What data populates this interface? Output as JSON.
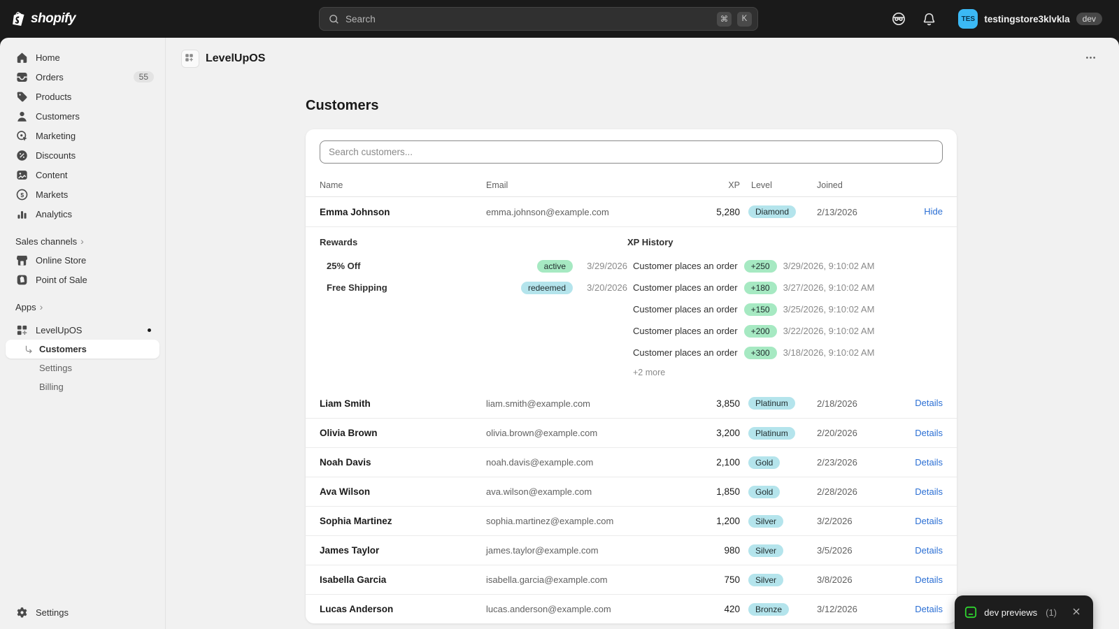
{
  "topbar": {
    "brand": "shopify",
    "search": {
      "placeholder": "Search",
      "shortcut_cmd": "⌘",
      "shortcut_key": "K"
    },
    "account": {
      "initials": "TES",
      "store_name": "testingstore3klvkla",
      "env_badge": "dev"
    }
  },
  "sidebar": {
    "items": [
      {
        "label": "Home",
        "icon": "home-icon"
      },
      {
        "label": "Orders",
        "icon": "orders-icon",
        "badge": "55"
      },
      {
        "label": "Products",
        "icon": "tag-icon"
      },
      {
        "label": "Customers",
        "icon": "people-icon"
      },
      {
        "label": "Marketing",
        "icon": "marketing-icon"
      },
      {
        "label": "Discounts",
        "icon": "discount-icon"
      },
      {
        "label": "Content",
        "icon": "content-icon"
      },
      {
        "label": "Markets",
        "icon": "markets-icon"
      },
      {
        "label": "Analytics",
        "icon": "analytics-icon"
      }
    ],
    "sales_channels": {
      "label": "Sales channels",
      "items": [
        {
          "label": "Online Store",
          "icon": "storefront-icon"
        },
        {
          "label": "Point of Sale",
          "icon": "pos-icon"
        }
      ]
    },
    "apps": {
      "label": "Apps",
      "app": {
        "label": "LevelUpOS",
        "icon": "app-grid-icon"
      },
      "children": [
        {
          "label": "Customers",
          "active": true
        },
        {
          "label": "Settings",
          "active": false
        },
        {
          "label": "Billing",
          "active": false
        }
      ]
    },
    "footer": {
      "label": "Settings",
      "icon": "gear-icon"
    }
  },
  "page_header": {
    "title": "LevelUpOS"
  },
  "content": {
    "title": "Customers",
    "search_placeholder": "Search customers...",
    "table": {
      "columns": [
        "Name",
        "Email",
        "XP",
        "Level",
        "Joined"
      ],
      "rows": [
        {
          "name": "Emma Johnson",
          "email": "emma.johnson@example.com",
          "xp": "5,280",
          "level": "Diamond",
          "joined": "2/13/2026",
          "action": "Hide"
        },
        {
          "name": "Liam Smith",
          "email": "liam.smith@example.com",
          "xp": "3,850",
          "level": "Platinum",
          "joined": "2/18/2026",
          "action": "Details"
        },
        {
          "name": "Olivia Brown",
          "email": "olivia.brown@example.com",
          "xp": "3,200",
          "level": "Platinum",
          "joined": "2/20/2026",
          "action": "Details"
        },
        {
          "name": "Noah Davis",
          "email": "noah.davis@example.com",
          "xp": "2,100",
          "level": "Gold",
          "joined": "2/23/2026",
          "action": "Details"
        },
        {
          "name": "Ava Wilson",
          "email": "ava.wilson@example.com",
          "xp": "1,850",
          "level": "Gold",
          "joined": "2/28/2026",
          "action": "Details"
        },
        {
          "name": "Sophia Martinez",
          "email": "sophia.martinez@example.com",
          "xp": "1,200",
          "level": "Silver",
          "joined": "3/2/2026",
          "action": "Details"
        },
        {
          "name": "James Taylor",
          "email": "james.taylor@example.com",
          "xp": "980",
          "level": "Silver",
          "joined": "3/5/2026",
          "action": "Details"
        },
        {
          "name": "Isabella Garcia",
          "email": "isabella.garcia@example.com",
          "xp": "750",
          "level": "Silver",
          "joined": "3/8/2026",
          "action": "Details"
        },
        {
          "name": "Lucas Anderson",
          "email": "lucas.anderson@example.com",
          "xp": "420",
          "level": "Bronze",
          "joined": "3/12/2026",
          "action": "Details"
        }
      ]
    },
    "expanded_row": {
      "rewards": {
        "title": "Rewards",
        "items": [
          {
            "name": "25% Off",
            "status": "active",
            "date": "3/29/2026"
          },
          {
            "name": "Free Shipping",
            "status": "redeemed",
            "date": "3/20/2026"
          }
        ]
      },
      "xp_history": {
        "title": "XP History",
        "items": [
          {
            "label": "Customer places an order",
            "amount": "+250",
            "timestamp": "3/29/2026, 9:10:02 AM"
          },
          {
            "label": "Customer places an order",
            "amount": "+180",
            "timestamp": "3/27/2026, 9:10:02 AM"
          },
          {
            "label": "Customer places an order",
            "amount": "+150",
            "timestamp": "3/25/2026, 9:10:02 AM"
          },
          {
            "label": "Customer places an order",
            "amount": "+200",
            "timestamp": "3/22/2026, 9:10:02 AM"
          },
          {
            "label": "Customer places an order",
            "amount": "+300",
            "timestamp": "3/18/2026, 9:10:02 AM"
          }
        ],
        "more": "+2 more"
      }
    }
  },
  "toast": {
    "label": "dev previews",
    "count": "(1)"
  },
  "colors": {
    "level_badge": "#b4e4ec",
    "xp_badge": "#a6e9c2",
    "link": "#2b6fd4",
    "avatar": "#3bb9f5"
  }
}
